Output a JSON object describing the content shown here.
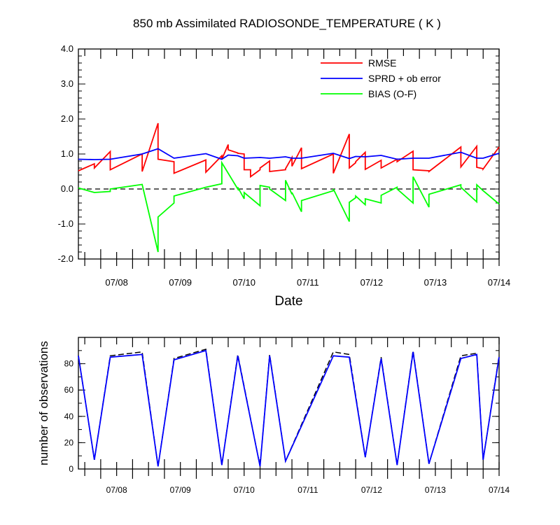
{
  "title": "850 mb Assimilated RADIOSONDE_TEMPERATURE ( K )",
  "chart_data": [
    {
      "type": "line",
      "xlabel": "Date",
      "ylabel": "",
      "xlim": [
        7.4,
        14.0
      ],
      "ylim": [
        -2.0,
        4.0
      ],
      "xticks": [
        8,
        9,
        10,
        11,
        12,
        13,
        14
      ],
      "xtick_labels": [
        "07/08",
        "07/09",
        "07/10",
        "07/11",
        "07/12",
        "07/13",
        "07/14"
      ],
      "yticks": [
        -2,
        -1,
        0,
        1,
        2,
        3,
        4
      ],
      "ytick_labels": [
        "-2.0",
        "-1.0",
        "0.0",
        "1.0",
        "2.0",
        "3.0",
        "4.0"
      ],
      "legend_position": "top-right",
      "reference_line": {
        "y": 0,
        "style": "dashed",
        "color": "#000000"
      },
      "series": [
        {
          "name": "RMSE",
          "color": "#ff0000",
          "x": [
            7.4,
            7.65,
            7.65,
            7.9,
            7.9,
            8.4,
            8.4,
            8.65,
            8.65,
            8.9,
            8.9,
            9.4,
            9.4,
            9.65,
            9.65,
            9.75,
            9.75,
            9.9,
            9.9,
            10.0,
            10.0,
            10.1,
            10.1,
            10.25,
            10.25,
            10.4,
            10.4,
            10.65,
            10.65,
            10.75,
            10.75,
            10.9,
            10.9,
            11.4,
            11.4,
            11.65,
            11.65,
            11.75,
            11.75,
            11.9,
            11.9,
            12.15,
            12.15,
            12.4,
            12.4,
            12.65,
            12.65,
            12.9,
            12.9,
            13.4,
            13.4,
            13.65,
            13.65,
            13.75,
            13.75,
            14.0
          ],
          "y": [
            0.52,
            0.72,
            0.6,
            1.07,
            0.55,
            1.0,
            0.5,
            1.88,
            0.85,
            0.78,
            0.45,
            0.83,
            0.48,
            0.95,
            0.85,
            1.27,
            1.12,
            1.03,
            1.02,
            1.0,
            0.55,
            0.55,
            0.35,
            0.55,
            0.6,
            0.8,
            0.5,
            0.55,
            0.58,
            0.9,
            0.65,
            1.18,
            0.58,
            1.0,
            0.45,
            1.57,
            0.6,
            0.75,
            0.78,
            1.05,
            0.56,
            0.82,
            0.6,
            0.85,
            0.78,
            1.08,
            0.55,
            0.52,
            0.5,
            1.2,
            0.63,
            1.22,
            0.62,
            0.58,
            0.57,
            1.2
          ]
        },
        {
          "name": "SPRD + ob error",
          "color": "#0000ff",
          "x": [
            7.4,
            7.65,
            7.9,
            8.4,
            8.65,
            8.9,
            9.4,
            9.65,
            9.75,
            9.9,
            10.0,
            10.25,
            10.4,
            10.65,
            10.75,
            10.9,
            11.4,
            11.65,
            11.75,
            11.9,
            12.15,
            12.4,
            12.65,
            12.9,
            13.4,
            13.65,
            13.75,
            14.0
          ],
          "y": [
            0.85,
            0.84,
            0.85,
            1.0,
            1.15,
            0.88,
            1.01,
            0.85,
            0.97,
            0.95,
            0.88,
            0.9,
            0.88,
            0.92,
            0.88,
            0.88,
            1.02,
            0.87,
            0.93,
            0.92,
            0.96,
            0.85,
            0.88,
            0.88,
            1.05,
            0.88,
            0.88,
            1.02
          ]
        },
        {
          "name": "BIAS (O-F)",
          "color": "#00ff00",
          "x": [
            7.4,
            7.65,
            7.9,
            7.9,
            8.4,
            8.65,
            8.65,
            8.9,
            8.9,
            9.4,
            9.65,
            9.65,
            9.9,
            9.9,
            10.0,
            10.0,
            10.25,
            10.25,
            10.4,
            10.4,
            10.65,
            10.65,
            10.75,
            10.75,
            10.9,
            10.9,
            11.4,
            11.4,
            11.65,
            11.65,
            11.75,
            11.75,
            11.9,
            11.9,
            12.15,
            12.15,
            12.4,
            12.4,
            12.65,
            12.65,
            12.9,
            12.9,
            13.4,
            13.4,
            13.65,
            13.65,
            13.75,
            13.75,
            14.0
          ],
          "y": [
            0.03,
            -0.1,
            -0.07,
            0.0,
            0.13,
            -1.8,
            -0.8,
            -0.4,
            -0.2,
            0.05,
            0.15,
            0.75,
            0.0,
            0.05,
            -0.28,
            -0.1,
            -0.48,
            0.1,
            0.05,
            0.0,
            -0.33,
            0.25,
            -0.15,
            -0.1,
            -0.65,
            -0.33,
            -0.05,
            0.0,
            -0.93,
            -0.38,
            -0.25,
            -0.2,
            -0.45,
            -0.28,
            -0.4,
            -0.18,
            0.05,
            0.0,
            -0.4,
            0.35,
            -0.52,
            -0.15,
            0.12,
            0.05,
            -0.37,
            0.12,
            -0.05,
            -0.05,
            -0.43
          ]
        }
      ]
    },
    {
      "type": "line",
      "xlabel": "",
      "ylabel": "number of observations",
      "xlim": [
        7.4,
        14.0
      ],
      "ylim": [
        0,
        100
      ],
      "xticks": [
        8,
        9,
        10,
        11,
        12,
        13,
        14
      ],
      "xtick_labels": [
        "07/08",
        "07/09",
        "07/10",
        "07/11",
        "07/12",
        "07/13",
        "07/14"
      ],
      "yticks": [
        0,
        20,
        40,
        60,
        80
      ],
      "ytick_labels": [
        "0",
        "20",
        "40",
        "60",
        "80"
      ],
      "series": [
        {
          "color": "#000000",
          "style": "dashed",
          "x": [
            7.4,
            7.65,
            7.9,
            8.4,
            8.65,
            8.9,
            9.4,
            9.65,
            9.9,
            10.25,
            10.4,
            10.65,
            11.4,
            11.65,
            11.9,
            12.15,
            12.4,
            12.65,
            12.9,
            13.4,
            13.65,
            13.75,
            14.0
          ],
          "y": [
            86,
            7,
            86,
            89,
            2,
            84,
            91,
            3,
            87,
            2,
            87,
            6,
            89,
            87,
            9,
            85,
            3,
            90,
            4,
            86,
            88,
            7,
            86
          ]
        },
        {
          "color": "#0000ff",
          "style": "solid",
          "x": [
            7.4,
            7.65,
            7.9,
            8.4,
            8.65,
            8.9,
            9.4,
            9.65,
            9.9,
            10.25,
            10.4,
            10.65,
            11.4,
            11.65,
            11.9,
            12.15,
            12.4,
            12.65,
            12.9,
            13.4,
            13.65,
            13.75,
            14.0
          ],
          "y": [
            86,
            7,
            85,
            87,
            2,
            83,
            90,
            3,
            86,
            2,
            86,
            6,
            86,
            85,
            9,
            84,
            3,
            89,
            4,
            84,
            87,
            7,
            85
          ]
        }
      ]
    }
  ]
}
